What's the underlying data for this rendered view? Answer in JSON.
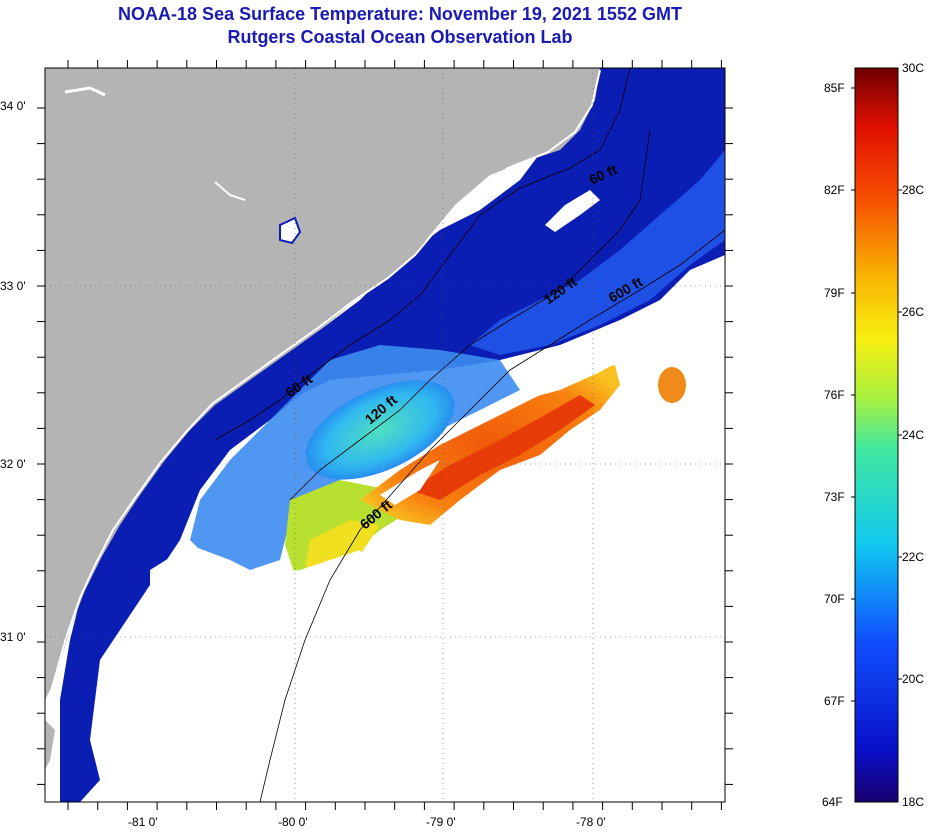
{
  "title": "NOAA-18 Sea Surface Temperature:  November 19, 2021 1552 GMT",
  "subtitle": "Rutgers Coastal Ocean Observation Lab",
  "latitude_labels": [
    "34 0'",
    "33 0'",
    "32 0'",
    "31 0'"
  ],
  "longitude_labels": [
    "-81 0'",
    "-80 0'",
    "-79 0'",
    "-78 0'"
  ],
  "contour_labels": [
    "60 ft",
    "120 ft",
    "600 ft",
    "120 ft",
    "600 ft",
    "60 ft"
  ],
  "colorbar": {
    "fahrenheit": [
      "85F",
      "82F",
      "79F",
      "76F",
      "73F",
      "70F",
      "67F",
      "64F"
    ],
    "celsius": [
      "30C",
      "28C",
      "26C",
      "24C",
      "22C",
      "20C",
      "18C"
    ]
  },
  "colors": {
    "land": "#b4b4b4",
    "title": "#1a1ab4",
    "cold": "#0a1eb4",
    "warm": "#f05a0a",
    "cloud": "#ffffff"
  }
}
